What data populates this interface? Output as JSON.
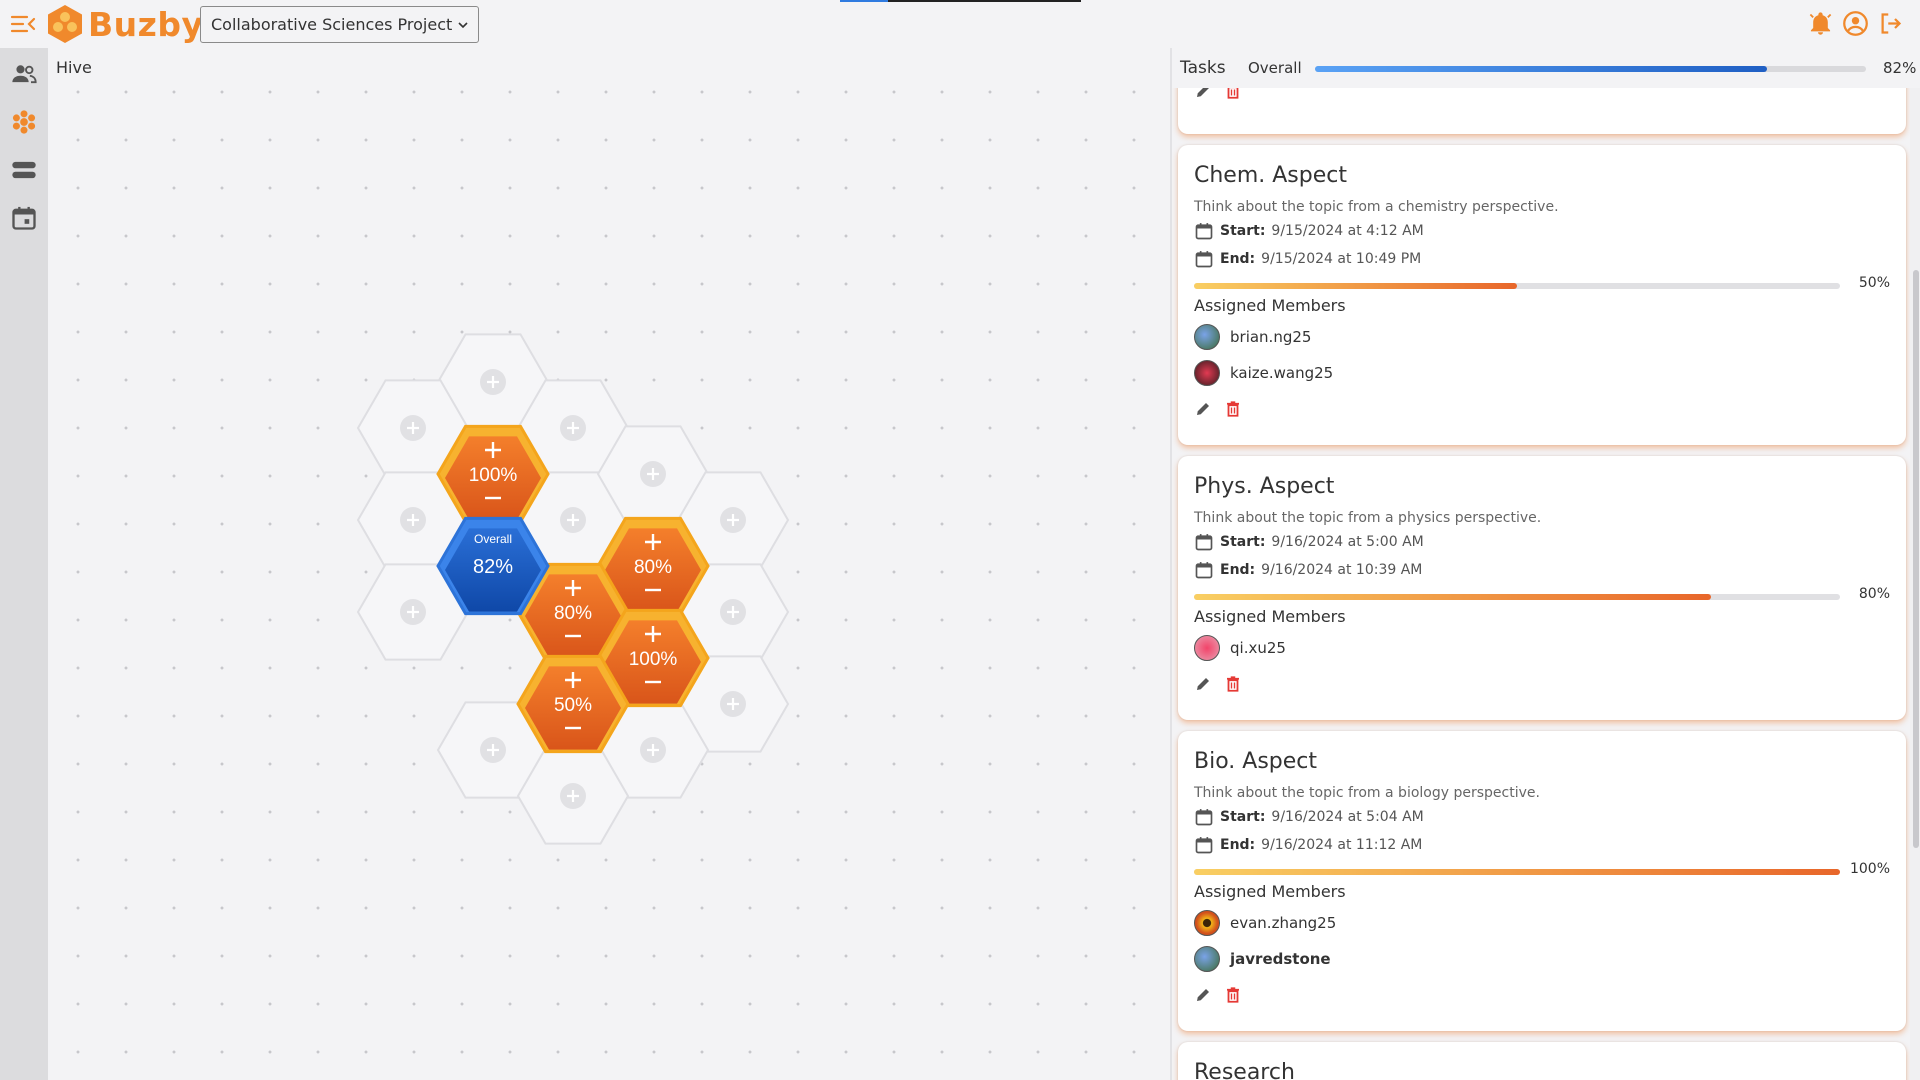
{
  "app": {
    "logo_text": "Buzby"
  },
  "header": {
    "project_name": "Collaborative Sciences Project"
  },
  "hive": {
    "title": "Hive",
    "overall_label": "Overall",
    "overall_pct": "82%",
    "cells": [
      {
        "pct": "100%"
      },
      {
        "pct": "80%"
      },
      {
        "pct": "80%"
      },
      {
        "pct": "100%"
      },
      {
        "pct": "50%"
      }
    ]
  },
  "tasks": {
    "title": "Tasks",
    "overall_label": "Overall",
    "overall_pct": "82%",
    "overall_fraction": 0.82,
    "members_heading": "Assigned Members",
    "start_label": "Start:",
    "end_label": "End:",
    "items": [
      {
        "title": "Chem. Aspect",
        "description": "Think about the topic from a chemistry perspective.",
        "start": "9/15/2024 at 4:12 AM",
        "end": "9/15/2024 at 10:49 PM",
        "progress_pct": "50%",
        "progress_fraction": 0.5,
        "members": [
          {
            "name": "brian.ng25"
          },
          {
            "name": "kaize.wang25"
          }
        ]
      },
      {
        "title": "Phys. Aspect",
        "description": "Think about the topic from a physics perspective.",
        "start": "9/16/2024 at 5:00 AM",
        "end": "9/16/2024 at 10:39 AM",
        "progress_pct": "80%",
        "progress_fraction": 0.8,
        "members": [
          {
            "name": "qi.xu25"
          }
        ]
      },
      {
        "title": "Bio. Aspect",
        "description": "Think about the topic from a biology perspective.",
        "start": "9/16/2024 at 5:04 AM",
        "end": "9/16/2024 at 11:12 AM",
        "progress_pct": "100%",
        "progress_fraction": 1.0,
        "members": [
          {
            "name": "evan.zhang25"
          },
          {
            "name": "javredstone"
          }
        ]
      },
      {
        "title": "Research"
      }
    ]
  },
  "colors": {
    "brand_orange": "#f0892c",
    "overall_blue": "#1f5fc4",
    "delete_red": "#e53935"
  },
  "icons": {
    "menu": "menu-collapse-icon",
    "notifications": "bell-icon",
    "account": "account-circle-icon",
    "logout": "logout-icon",
    "members": "people-icon",
    "hive": "hive-icon",
    "list": "list-icon",
    "calendar": "calendar-icon",
    "edit": "pencil-icon",
    "delete": "trash-icon"
  }
}
